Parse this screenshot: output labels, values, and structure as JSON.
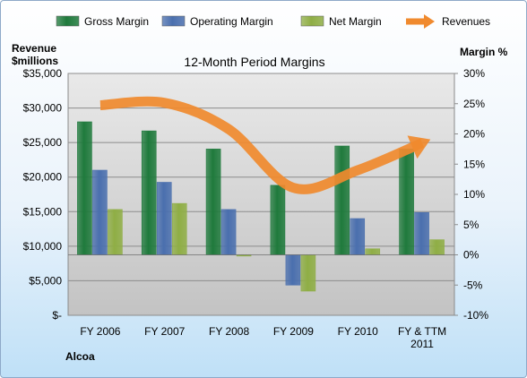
{
  "company": "Alcoa",
  "colors": {
    "gross": "#1f7a3c",
    "operating": "#4a6fae",
    "net": "#8fae45",
    "revenue": "#f08a2e",
    "plot_bg": "#c3c3c3"
  },
  "chart_data": {
    "type": "bar",
    "title": "12-Month Period Margins",
    "categories": [
      "FY 2006",
      "FY 2007",
      "FY 2008",
      "FY 2009",
      "FY 2010",
      "FY & TTM 2011"
    ],
    "y_left": {
      "label_lines": [
        "Revenue",
        "$millions"
      ],
      "range": [
        0,
        35000
      ],
      "ticks": [
        0,
        5000,
        10000,
        15000,
        20000,
        25000,
        30000,
        35000
      ],
      "tick_labels": [
        "$-",
        "$5,000",
        "$10,000",
        "$15,000",
        "$20,000",
        "$25,000",
        "$30,000",
        "$35,000"
      ]
    },
    "y_right": {
      "label": "Margin %",
      "range": [
        -10,
        30
      ],
      "ticks": [
        -10,
        -5,
        0,
        5,
        10,
        15,
        20,
        25,
        30
      ],
      "tick_labels": [
        "-10%",
        "-5%",
        "0%",
        "5%",
        "10%",
        "15%",
        "20%",
        "25%",
        "30%"
      ]
    },
    "series": [
      {
        "name": "Gross Margin",
        "axis": "right",
        "kind": "bar",
        "values": [
          22,
          20.5,
          17.5,
          11.5,
          18,
          17.5
        ]
      },
      {
        "name": "Operating Margin",
        "axis": "right",
        "kind": "bar",
        "values": [
          14,
          12,
          7.5,
          -5,
          6,
          7
        ]
      },
      {
        "name": "Net Margin",
        "axis": "right",
        "kind": "bar",
        "values": [
          7.5,
          8.5,
          -0.2,
          -6,
          1,
          2.5
        ]
      },
      {
        "name": "Revenues",
        "axis": "left",
        "kind": "line",
        "values": [
          30400,
          30750,
          26900,
          18450,
          21000,
          24950
        ]
      }
    ],
    "legend_position": "top",
    "grid": true
  }
}
